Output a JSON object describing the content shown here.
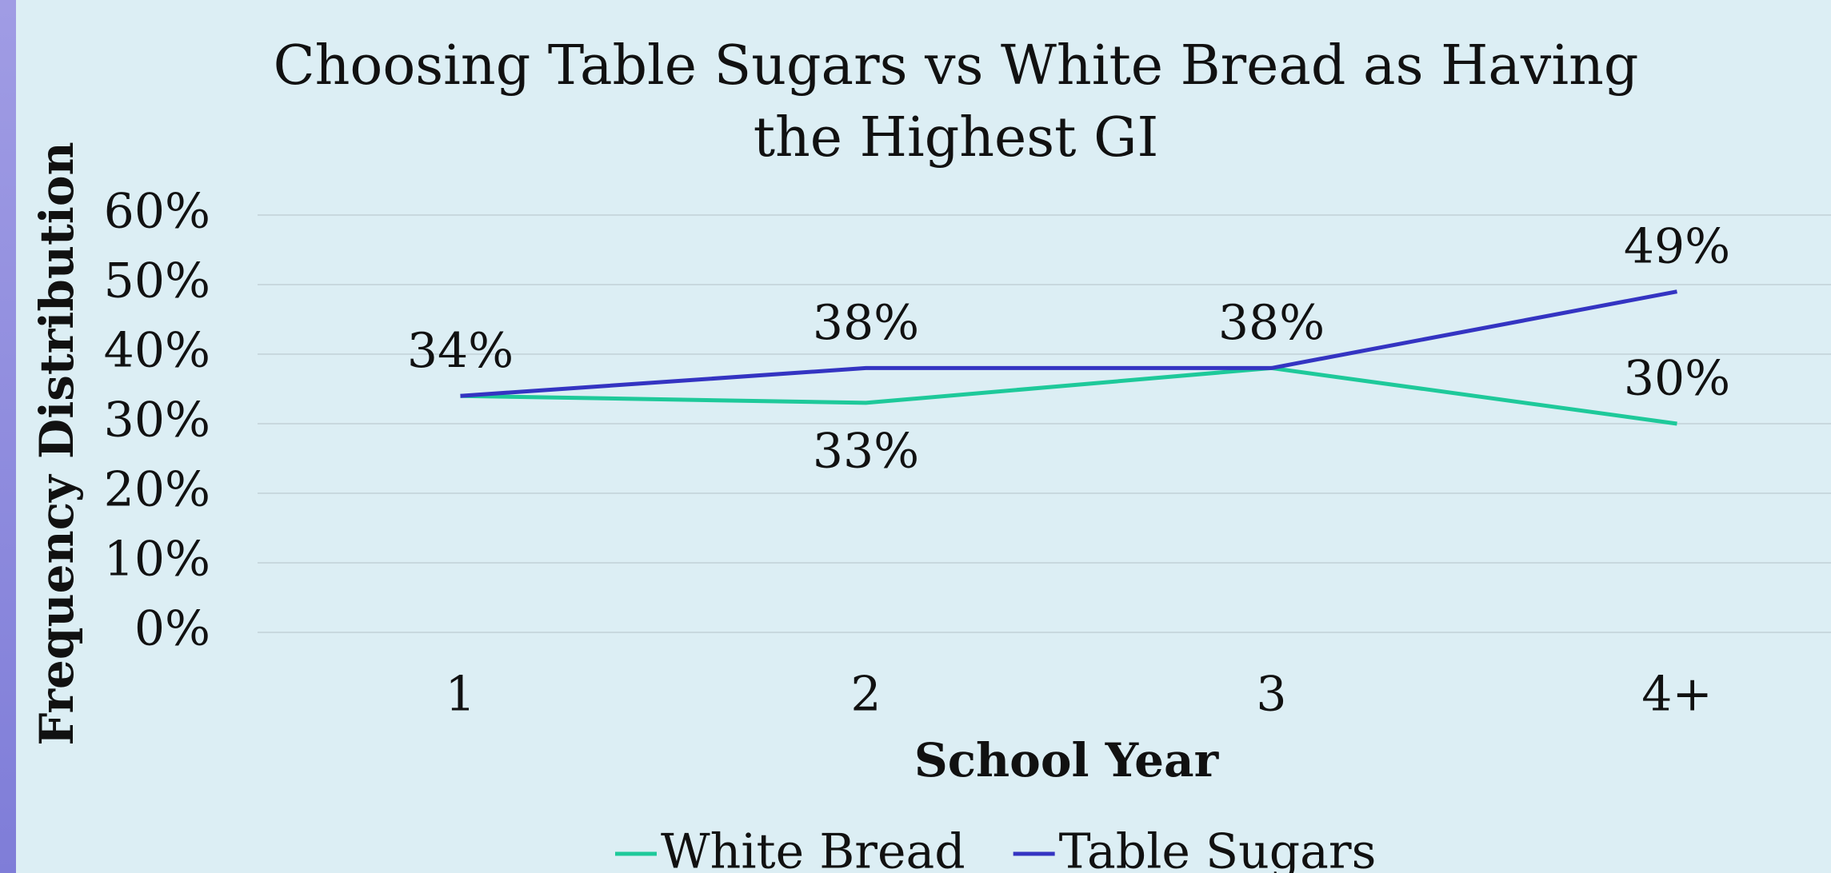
{
  "chart_data": {
    "type": "line",
    "title": "Choosing Table Sugars vs White Bread as Having the Highest GI",
    "x_label": "School Year",
    "y_label": "Frequency Distribution",
    "categories": [
      "1",
      "2",
      "3",
      "4+"
    ],
    "series": [
      {
        "name": "White Bread",
        "color": "#1ec99a",
        "values": [
          34,
          33,
          38,
          30
        ],
        "value_labels": [
          null,
          "33%",
          null,
          "30%"
        ]
      },
      {
        "name": "Table Sugars",
        "color": "#3434c2",
        "values": [
          34,
          38,
          38,
          49
        ],
        "value_labels": [
          "34%",
          "38%",
          "38%",
          "49%"
        ]
      }
    ],
    "ylim": [
      0,
      60
    ],
    "yticks": [
      {
        "value": 0,
        "label": "0%"
      },
      {
        "value": 10,
        "label": "10%"
      },
      {
        "value": 20,
        "label": "20%"
      },
      {
        "value": 30,
        "label": "30%"
      },
      {
        "value": 40,
        "label": "40%"
      },
      {
        "value": 50,
        "label": "50%"
      },
      {
        "value": 60,
        "label": "60%"
      }
    ],
    "grid": true,
    "legend": "bottom"
  }
}
